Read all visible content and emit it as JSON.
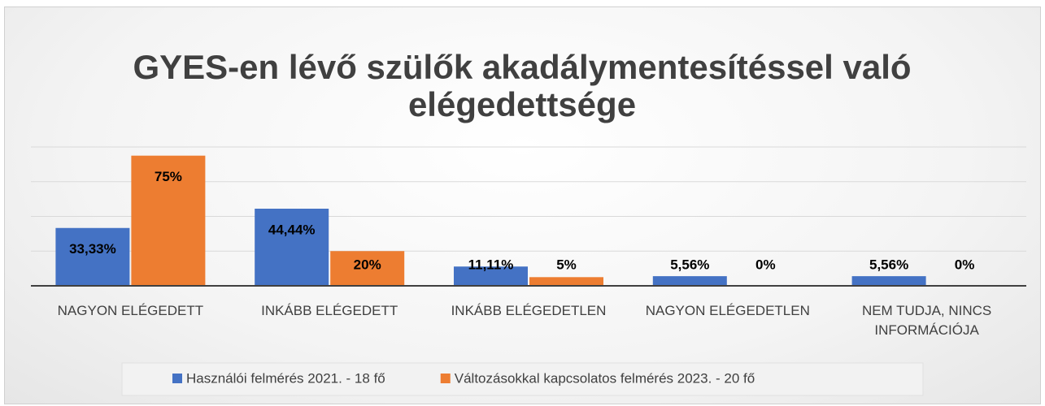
{
  "chart_data": {
    "type": "bar",
    "title": "GYES-en lévő szülők akadálymentesítéssel való elégedettsége",
    "categories": [
      "NAGYON ELÉGEDETT",
      "INKÁBB ELÉGEDETT",
      "INKÁBB ELÉGEDETLEN",
      "NAGYON ELÉGEDETLEN",
      "NEM TUDJA, NINCS INFORMÁCIÓJA"
    ],
    "series": [
      {
        "name": "Használói felmérés 2021. - 18 fő",
        "color": "#4472c4",
        "values": [
          33.33,
          44.44,
          11.11,
          5.56,
          5.56
        ],
        "value_labels": [
          "33,33%",
          "44,44%",
          "11,11%",
          "5,56%",
          "5,56%"
        ]
      },
      {
        "name": "Változásokkal kapcsolatos felmérés 2023. - 20 fő",
        "color": "#ed7d31",
        "values": [
          75,
          20,
          5,
          0,
          0
        ],
        "value_labels": [
          "75%",
          "20%",
          "5%",
          "0%",
          "0%"
        ]
      }
    ],
    "ylim": [
      0,
      80
    ],
    "yticks": [
      0,
      20,
      40,
      60,
      80
    ],
    "grid": true,
    "legend": "bottom"
  }
}
